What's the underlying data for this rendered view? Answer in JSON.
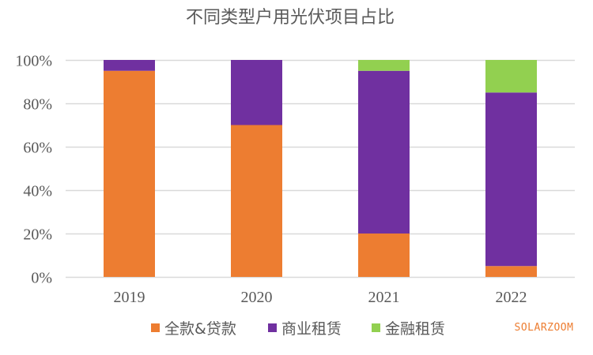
{
  "chart_data": {
    "type": "bar",
    "stacked": true,
    "title": "不同类型户用光伏项目占比",
    "xlabel": "",
    "ylabel": "",
    "categories": [
      "2019",
      "2020",
      "2021",
      "2022"
    ],
    "series": [
      {
        "name": "全款&贷款",
        "color": "#ED7D31",
        "values": [
          95,
          70,
          20,
          5
        ]
      },
      {
        "name": "商业租赁",
        "color": "#7030A0",
        "values": [
          5,
          30,
          75,
          80
        ]
      },
      {
        "name": "金融租赁",
        "color": "#92D050",
        "values": [
          0,
          0,
          5,
          15
        ]
      }
    ],
    "ylim": [
      0,
      100
    ],
    "yticks": [
      0,
      20,
      40,
      60,
      80,
      100
    ],
    "ytick_labels": [
      "0%",
      "20%",
      "40%",
      "60%",
      "80%",
      "100%"
    ],
    "grid": true,
    "legend_position": "bottom"
  },
  "watermark": "SOLARZOOM"
}
